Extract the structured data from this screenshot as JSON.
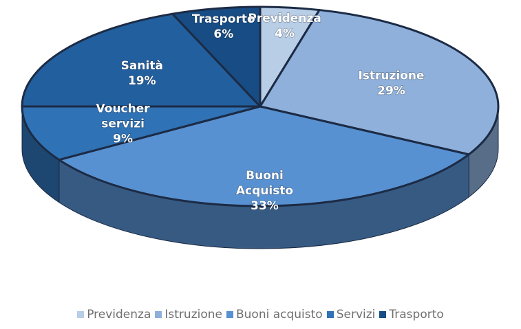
{
  "chart_data": {
    "type": "pie",
    "title": "",
    "slices": [
      {
        "label": "Previdenza",
        "value": 4,
        "value_label": "4%",
        "color": "#b8cde6"
      },
      {
        "label": "Istruzione",
        "value": 29,
        "value_label": "29%",
        "color": "#8eb0db"
      },
      {
        "label": "Buoni Acquisto",
        "value": 33,
        "value_label": "33%",
        "color": "#5891d1"
      },
      {
        "label": "Voucher servizi",
        "value": 9,
        "value_label": "9%",
        "color": "#2f72b5"
      },
      {
        "label": "Sanità",
        "value": 19,
        "value_label": "19%",
        "color": "#225f9e"
      },
      {
        "label": "Trasporto",
        "value": 6,
        "value_label": "6%",
        "color": "#174c84"
      }
    ],
    "legend": {
      "position": "bottom",
      "entries": [
        {
          "label": "Previdenza",
          "color": "#b8cde6"
        },
        {
          "label": "Istruzione",
          "color": "#8eb0db"
        },
        {
          "label": "Buoni acquisto",
          "color": "#5891d1"
        },
        {
          "label": "Servizi",
          "color": "#2f72b5"
        },
        {
          "label": "Trasporto",
          "color": "#174c84"
        }
      ]
    }
  }
}
